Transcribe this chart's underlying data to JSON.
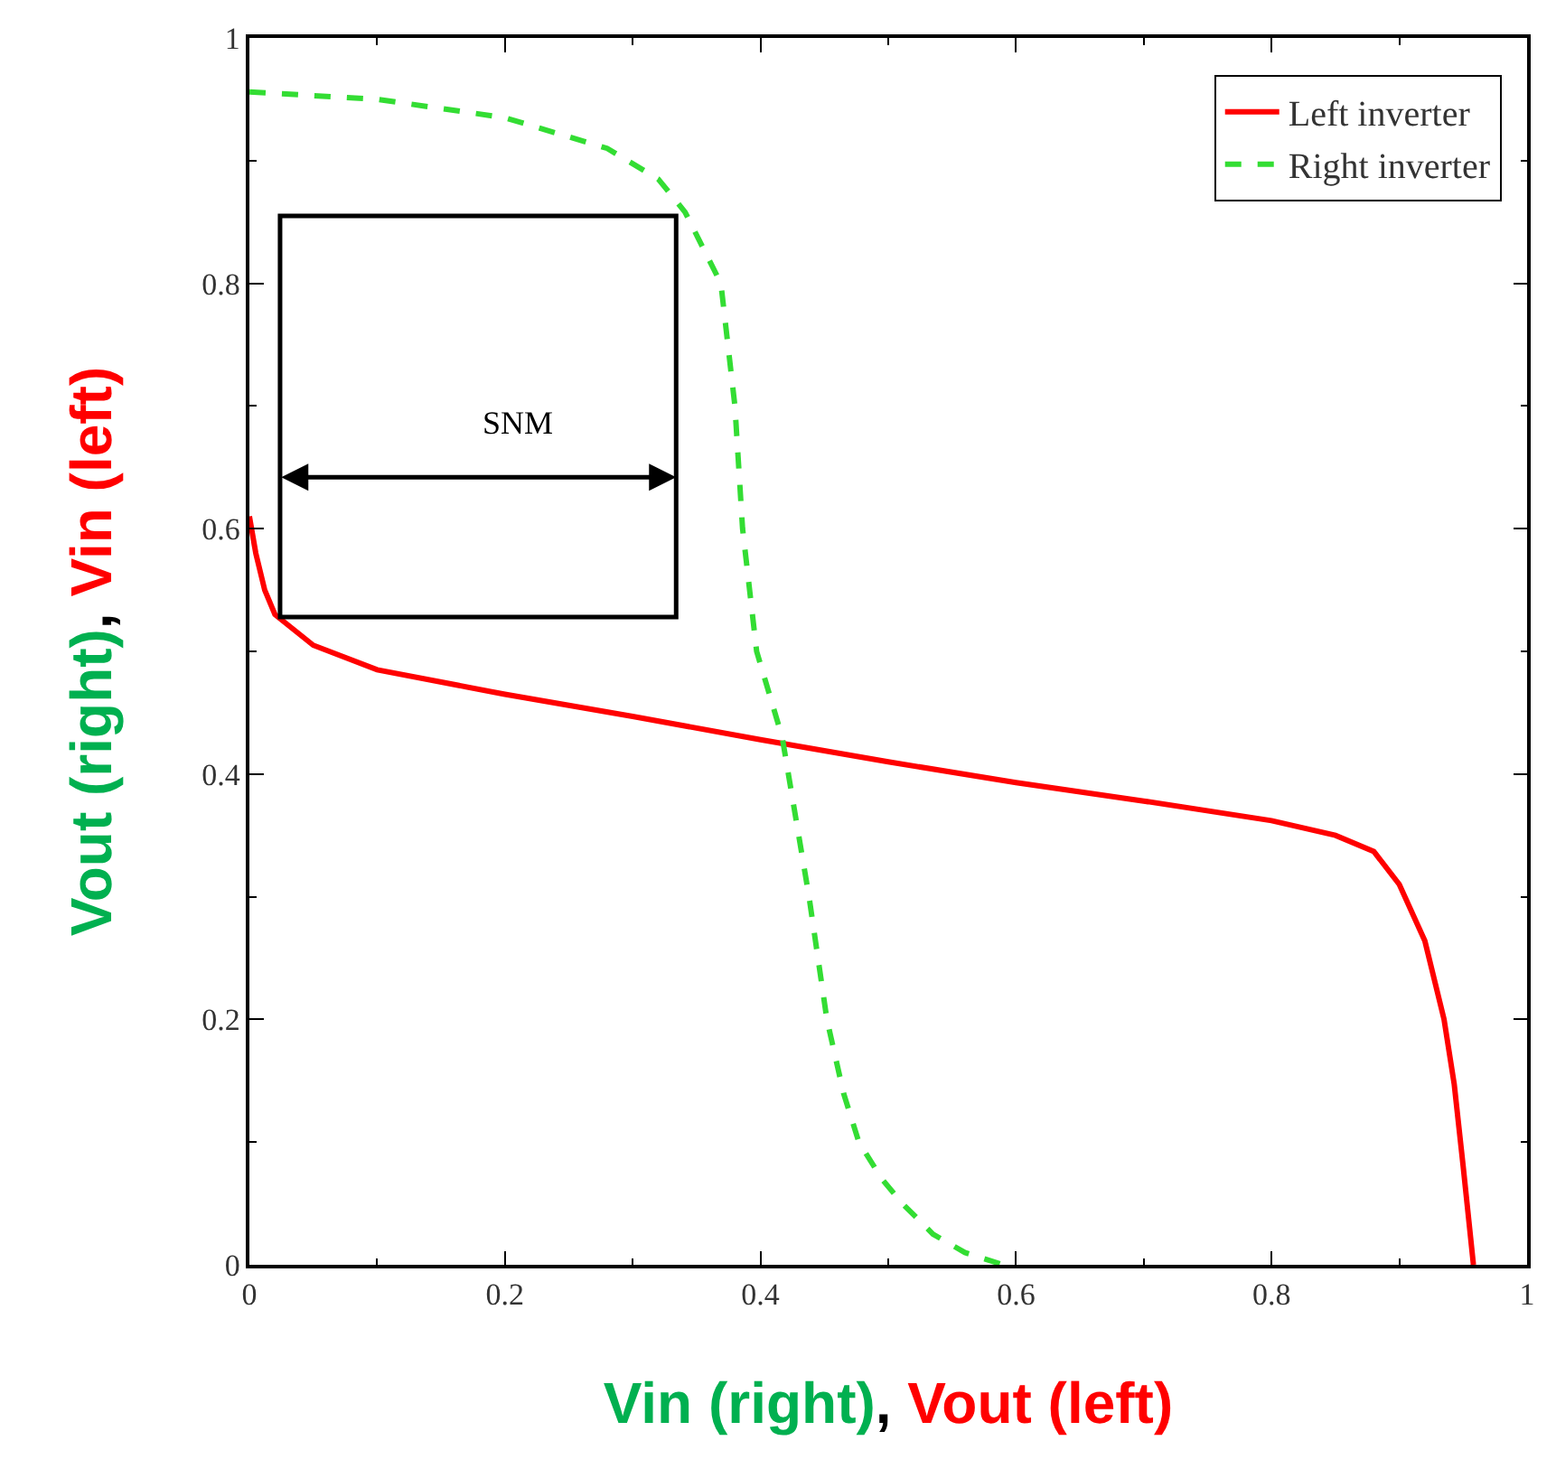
{
  "chart_data": {
    "type": "line",
    "xlabel": "Vin (right), Vout (left)",
    "ylabel": "Vout (right), Vin (left)",
    "xlim": [
      0,
      1
    ],
    "ylim": [
      0,
      1
    ],
    "xticks": [
      0,
      0.2,
      0.4,
      0.6,
      0.8,
      1
    ],
    "yticks": [
      0,
      0.2,
      0.4,
      0.6,
      0.8,
      1
    ],
    "legend": "top right",
    "marker": "none",
    "series": [
      {
        "name": "Left inverter",
        "color": "#ff0000",
        "line_style": "solid",
        "x": [
          0,
          0.005,
          0.012,
          0.02,
          0.05,
          0.1,
          0.2,
          0.3,
          0.4,
          0.5,
          0.6,
          0.7,
          0.8,
          0.85,
          0.88,
          0.9,
          0.92,
          0.935,
          0.943,
          0.95,
          0.955,
          0.958
        ],
        "values": [
          0.61,
          0.58,
          0.55,
          0.53,
          0.505,
          0.485,
          0.465,
          0.447,
          0.428,
          0.41,
          0.393,
          0.378,
          0.362,
          0.35,
          0.337,
          0.31,
          0.264,
          0.2,
          0.147,
          0.08,
          0.03,
          0
        ]
      },
      {
        "name": "Right inverter",
        "color": "#33dd33",
        "line_style": "dashed",
        "x": [
          0,
          0.1,
          0.2,
          0.28,
          0.32,
          0.341,
          0.369,
          0.38,
          0.386,
          0.397,
          0.417,
          0.438,
          0.452,
          0.465,
          0.477,
          0.495,
          0.511,
          0.535,
          0.56,
          0.59
        ],
        "values": [
          0.956,
          0.95,
          0.935,
          0.91,
          0.885,
          0.858,
          0.8,
          0.7,
          0.6,
          0.5,
          0.43,
          0.3,
          0.2,
          0.14,
          0.1,
          0.07,
          0.05,
          0.025,
          0.01,
          0
        ]
      }
    ],
    "annotations": [
      "SNM"
    ]
  }
}
